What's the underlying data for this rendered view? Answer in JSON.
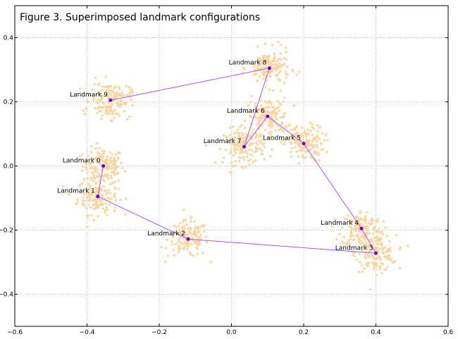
{
  "chart_data": {
    "type": "scatter",
    "title": "Figure 3. Superimposed landmark configurations",
    "xlabel": "",
    "ylabel": "",
    "xlim": [
      -0.6,
      0.6
    ],
    "ylim": [
      -0.5,
      0.5
    ],
    "x_ticks": [
      "−0.6",
      "−0.4",
      "−0.2",
      "0.0",
      "0.2",
      "0.4",
      "0.6"
    ],
    "y_ticks": [
      "−0.4",
      "−0.2",
      "0.0",
      "0.2",
      "0.4"
    ],
    "grid": true,
    "legend": "none",
    "colors": {
      "points": "#fdd49e",
      "line": "#a855f7",
      "mean": "#6a00d4"
    },
    "landmarks": [
      {
        "label": "Landmark 0",
        "x": -0.355,
        "y": 0.0
      },
      {
        "label": "Landmark 1",
        "x": -0.37,
        "y": -0.095
      },
      {
        "label": "Landmark 2",
        "x": -0.12,
        "y": -0.228
      },
      {
        "label": "Landmark 3",
        "x": 0.4,
        "y": -0.272
      },
      {
        "label": "Landmark 4",
        "x": 0.36,
        "y": -0.195
      },
      {
        "label": "Landmark 5",
        "x": 0.2,
        "y": 0.07
      },
      {
        "label": "Landmark 6",
        "x": 0.1,
        "y": 0.155
      },
      {
        "label": "Landmark 7",
        "x": 0.035,
        "y": 0.06
      },
      {
        "label": "Landmark 8",
        "x": 0.105,
        "y": 0.305
      },
      {
        "label": "Landmark 9",
        "x": -0.335,
        "y": 0.205
      }
    ],
    "connections": [
      [
        0,
        1
      ],
      [
        1,
        2
      ],
      [
        2,
        3
      ],
      [
        3,
        4
      ],
      [
        4,
        5
      ],
      [
        5,
        6
      ],
      [
        6,
        7
      ],
      [
        7,
        8
      ],
      [
        8,
        9
      ]
    ]
  }
}
